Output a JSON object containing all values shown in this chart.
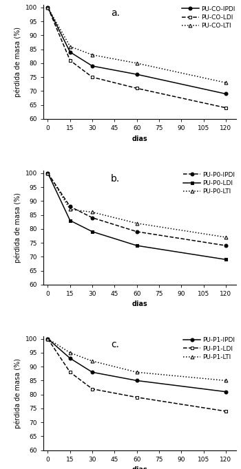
{
  "days": [
    0,
    15,
    30,
    60,
    120
  ],
  "panel_a": {
    "label": "a.",
    "series": [
      {
        "name": "PU-CO-IPDI",
        "values": [
          100,
          84,
          79,
          76,
          69
        ],
        "linestyle": "-",
        "marker": "o",
        "mfc": "black"
      },
      {
        "name": "PU-CO-LDI",
        "values": [
          100,
          81,
          75,
          71,
          64
        ],
        "linestyle": "--",
        "marker": "s",
        "mfc": "white"
      },
      {
        "name": "PU-CO-LTI",
        "values": [
          100,
          86,
          83,
          80,
          73
        ],
        "linestyle": ":",
        "marker": "^",
        "mfc": "white"
      }
    ],
    "ylim": [
      60,
      101
    ],
    "yticks": [
      60,
      65,
      70,
      75,
      80,
      85,
      90,
      95,
      100
    ]
  },
  "panel_b": {
    "label": "b.",
    "series": [
      {
        "name": "PU-P0-IPDI",
        "values": [
          100,
          88,
          84,
          79,
          74
        ],
        "linestyle": "--",
        "marker": "o",
        "mfc": "black"
      },
      {
        "name": "PU-P0-LDI",
        "values": [
          100,
          83,
          79,
          74,
          69
        ],
        "linestyle": "-",
        "marker": "s",
        "mfc": "black"
      },
      {
        "name": "PU-P0-LTI",
        "values": [
          100,
          87,
          86,
          82,
          77
        ],
        "linestyle": ":",
        "marker": "^",
        "mfc": "white"
      }
    ],
    "ylim": [
      60,
      101
    ],
    "yticks": [
      60,
      65,
      70,
      75,
      80,
      85,
      90,
      95,
      100
    ]
  },
  "panel_c": {
    "label": "c.",
    "series": [
      {
        "name": "PU-P1-IPDI",
        "values": [
          100,
          93,
          88,
          85,
          81
        ],
        "linestyle": "-",
        "marker": "o",
        "mfc": "black"
      },
      {
        "name": "PU-P1-LDI",
        "values": [
          100,
          88,
          82,
          79,
          74
        ],
        "linestyle": "--",
        "marker": "s",
        "mfc": "white"
      },
      {
        "name": "PU-P1-LTI",
        "values": [
          100,
          95,
          92,
          88,
          85
        ],
        "linestyle": ":",
        "marker": "^",
        "mfc": "white"
      }
    ],
    "ylim": [
      60,
      101
    ],
    "yticks": [
      60,
      65,
      70,
      75,
      80,
      85,
      90,
      95,
      100
    ]
  },
  "xticks": [
    0,
    15,
    30,
    45,
    60,
    75,
    90,
    105,
    120
  ],
  "xlabel": "dias",
  "ylabel": "pérdida de masa (%)",
  "background_color": "white",
  "legend_fontsize": 6.5,
  "axis_fontsize": 7,
  "label_fontsize": 10,
  "tick_fontsize": 6.5,
  "marker_size": 3.5,
  "linewidth": 1.1
}
